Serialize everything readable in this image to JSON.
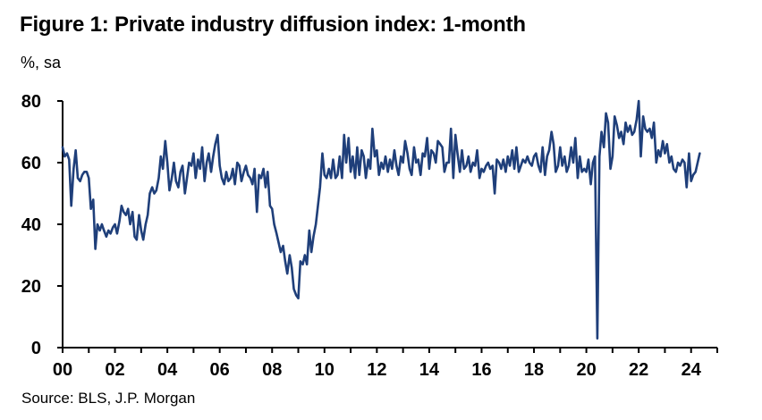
{
  "header": {
    "title": "Figure 1: Private industry diffusion index: 1-month",
    "unit": "%, sa"
  },
  "footer": {
    "source": "Source: BLS, J.P. Morgan"
  },
  "colors": {
    "line": "#1f3f7a",
    "axis": "#000000",
    "background": "#ffffff"
  },
  "chart_data": {
    "type": "line",
    "title": "Figure 1: Private industry diffusion index: 1-month",
    "ylabel": "%, sa",
    "xlabel": "",
    "ylim": [
      0,
      80
    ],
    "xlim": [
      2000.0,
      2025.0
    ],
    "yticks": [
      0,
      20,
      40,
      60,
      80
    ],
    "xtick_labels": [
      "00",
      "02",
      "04",
      "06",
      "08",
      "10",
      "12",
      "14",
      "16",
      "18",
      "20",
      "22",
      "24"
    ],
    "xtick_values": [
      2000,
      2002,
      2004,
      2006,
      2008,
      2010,
      2012,
      2014,
      2016,
      2018,
      2020,
      2022,
      2024
    ],
    "grid": false,
    "legend": "none",
    "series": [
      {
        "x": [
          2000.0,
          2000.08,
          2000.17,
          2000.25,
          2000.33,
          2000.42,
          2000.5,
          2000.58,
          2000.67,
          2000.75,
          2000.83,
          2000.92,
          2001.0,
          2001.08,
          2001.17,
          2001.25,
          2001.33,
          2001.42,
          2001.5,
          2001.58,
          2001.67,
          2001.75,
          2001.83,
          2001.92,
          2002.0,
          2002.08,
          2002.17,
          2002.25,
          2002.33,
          2002.42,
          2002.5,
          2002.58,
          2002.67,
          2002.75,
          2002.83,
          2002.92,
          2003.0,
          2003.08,
          2003.17,
          2003.25,
          2003.33,
          2003.42,
          2003.5,
          2003.58,
          2003.67,
          2003.75,
          2003.83,
          2003.92,
          2004.0,
          2004.08,
          2004.17,
          2004.25,
          2004.33,
          2004.42,
          2004.5,
          2004.58,
          2004.67,
          2004.75,
          2004.83,
          2004.92,
          2005.0,
          2005.08,
          2005.17,
          2005.25,
          2005.33,
          2005.42,
          2005.5,
          2005.58,
          2005.67,
          2005.75,
          2005.83,
          2005.92,
          2006.0,
          2006.08,
          2006.17,
          2006.25,
          2006.33,
          2006.42,
          2006.5,
          2006.58,
          2006.67,
          2006.75,
          2006.83,
          2006.92,
          2007.0,
          2007.08,
          2007.17,
          2007.25,
          2007.33,
          2007.42,
          2007.5,
          2007.58,
          2007.67,
          2007.75,
          2007.83,
          2007.92,
          2008.0,
          2008.08,
          2008.17,
          2008.25,
          2008.33,
          2008.42,
          2008.5,
          2008.58,
          2008.67,
          2008.75,
          2008.83,
          2008.92,
          2009.0,
          2009.08,
          2009.17,
          2009.25,
          2009.33,
          2009.42,
          2009.5,
          2009.58,
          2009.67,
          2009.75,
          2009.83,
          2009.92,
          2010.0,
          2010.08,
          2010.17,
          2010.25,
          2010.33,
          2010.42,
          2010.5,
          2010.58,
          2010.67,
          2010.75,
          2010.83,
          2010.92,
          2011.0,
          2011.08,
          2011.17,
          2011.25,
          2011.33,
          2011.42,
          2011.5,
          2011.58,
          2011.67,
          2011.75,
          2011.83,
          2011.92,
          2012.0,
          2012.08,
          2012.17,
          2012.25,
          2012.33,
          2012.42,
          2012.5,
          2012.58,
          2012.67,
          2012.75,
          2012.83,
          2012.92,
          2013.0,
          2013.08,
          2013.17,
          2013.25,
          2013.33,
          2013.42,
          2013.5,
          2013.58,
          2013.67,
          2013.75,
          2013.83,
          2013.92,
          2014.0,
          2014.08,
          2014.17,
          2014.25,
          2014.33,
          2014.42,
          2014.5,
          2014.58,
          2014.67,
          2014.75,
          2014.83,
          2014.92,
          2015.0,
          2015.08,
          2015.17,
          2015.25,
          2015.33,
          2015.42,
          2015.5,
          2015.58,
          2015.67,
          2015.75,
          2015.83,
          2015.92,
          2016.0,
          2016.08,
          2016.17,
          2016.25,
          2016.33,
          2016.42,
          2016.5,
          2016.58,
          2016.67,
          2016.75,
          2016.83,
          2016.92,
          2017.0,
          2017.08,
          2017.17,
          2017.25,
          2017.33,
          2017.42,
          2017.5,
          2017.58,
          2017.67,
          2017.75,
          2017.83,
          2017.92,
          2018.0,
          2018.08,
          2018.17,
          2018.25,
          2018.33,
          2018.42,
          2018.5,
          2018.58,
          2018.67,
          2018.75,
          2018.83,
          2018.92,
          2019.0,
          2019.08,
          2019.17,
          2019.25,
          2019.33,
          2019.42,
          2019.5,
          2019.58,
          2019.67,
          2019.75,
          2019.83,
          2019.92,
          2020.0,
          2020.08,
          2020.17,
          2020.25,
          2020.33,
          2020.42,
          2020.5,
          2020.58,
          2020.67,
          2020.75,
          2020.83,
          2020.92,
          2021.0,
          2021.08,
          2021.17,
          2021.25,
          2021.33,
          2021.42,
          2021.5,
          2021.58,
          2021.67,
          2021.75,
          2021.83,
          2021.92,
          2022.0,
          2022.08,
          2022.17,
          2022.25,
          2022.33,
          2022.42,
          2022.5,
          2022.58,
          2022.67,
          2022.75,
          2022.83,
          2022.92,
          2023.0,
          2023.08,
          2023.17,
          2023.25,
          2023.33,
          2023.42,
          2023.5,
          2023.58,
          2023.67,
          2023.75,
          2023.83,
          2023.92,
          2024.0,
          2024.08,
          2024.17,
          2024.25,
          2024.33
        ],
        "y": [
          65,
          62,
          63,
          61,
          46,
          58,
          64,
          55,
          54,
          56,
          57,
          57,
          55,
          45,
          48,
          32,
          40,
          38,
          40,
          38,
          36,
          38,
          37,
          39,
          40,
          37,
          41,
          46,
          44,
          43,
          45,
          40,
          44,
          36,
          35,
          43,
          38,
          35,
          40,
          43,
          50,
          52,
          50,
          51,
          55,
          62,
          58,
          67,
          60,
          51,
          55,
          60,
          54,
          52,
          57,
          59,
          50,
          55,
          60,
          59,
          63,
          55,
          61,
          58,
          65,
          54,
          60,
          63,
          57,
          62,
          66,
          69,
          59,
          55,
          53,
          57,
          54,
          55,
          58,
          53,
          60,
          59,
          54,
          57,
          59,
          56,
          55,
          53,
          58,
          44,
          56,
          55,
          58,
          52,
          57,
          46,
          45,
          40,
          37,
          34,
          31,
          33,
          28,
          24,
          30,
          26,
          19,
          17,
          16,
          28,
          27,
          30,
          27,
          38,
          31,
          36,
          40,
          46,
          52,
          63,
          56,
          55,
          58,
          55,
          61,
          55,
          56,
          62,
          55,
          69,
          60,
          68,
          57,
          62,
          55,
          65,
          56,
          64,
          62,
          55,
          61,
          58,
          71,
          62,
          64,
          56,
          60,
          58,
          62,
          57,
          61,
          58,
          64,
          59,
          56,
          62,
          60,
          67,
          63,
          58,
          56,
          65,
          60,
          61,
          56,
          63,
          62,
          68,
          58,
          64,
          63,
          60,
          67,
          66,
          65,
          57,
          60,
          60,
          71,
          55,
          69,
          63,
          57,
          64,
          58,
          59,
          62,
          57,
          60,
          59,
          64,
          55,
          58,
          57,
          59,
          60,
          58,
          59,
          50,
          61,
          60,
          58,
          61,
          57,
          62,
          59,
          64,
          58,
          65,
          57,
          59,
          61,
          60,
          62,
          60,
          59,
          62,
          63,
          59,
          57,
          65,
          56,
          62,
          64,
          70,
          66,
          57,
          59,
          65,
          59,
          62,
          57,
          59,
          65,
          60,
          68,
          55,
          62,
          57,
          58,
          57,
          61,
          53,
          60,
          62,
          3,
          62,
          70,
          65,
          76,
          73,
          58,
          62,
          75,
          72,
          68,
          70,
          66,
          73,
          70,
          72,
          69,
          70,
          74,
          80,
          62,
          75,
          71,
          70,
          71,
          68,
          73,
          60,
          64,
          62,
          67,
          63,
          66,
          60,
          62,
          58,
          57,
          60,
          59,
          61,
          60,
          52,
          63,
          54,
          56,
          57,
          60,
          63
        ]
      }
    ]
  }
}
